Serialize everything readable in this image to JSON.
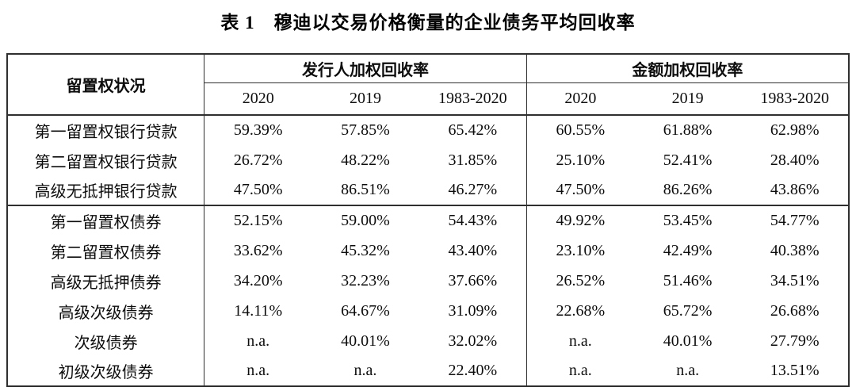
{
  "page": {
    "title": "表 1　穆迪以交易价格衡量的企业债务平均回收率"
  },
  "colors": {
    "background": "#ffffff",
    "text": "#0d0d0d",
    "border": "#2f2f2f"
  },
  "table": {
    "lien_header": "留置权状况",
    "groups": [
      {
        "label": "发行人加权回收率",
        "years": [
          "2020",
          "2019",
          "1983-2020"
        ]
      },
      {
        "label": "金额加权回收率",
        "years": [
          "2020",
          "2019",
          "1983-2020"
        ]
      }
    ],
    "rows": [
      {
        "label": "第一留置权银行贷款",
        "values": [
          "59.39%",
          "57.85%",
          "65.42%",
          "60.55%",
          "61.88%",
          "62.98%"
        ]
      },
      {
        "label": "第二留置权银行贷款",
        "values": [
          "26.72%",
          "48.22%",
          "31.85%",
          "25.10%",
          "52.41%",
          "28.40%"
        ]
      },
      {
        "label": "高级无抵押银行贷款",
        "values": [
          "47.50%",
          "86.51%",
          "46.27%",
          "47.50%",
          "86.26%",
          "43.86%"
        ]
      },
      {
        "label": "第一留置权债券",
        "values": [
          "52.15%",
          "59.00%",
          "54.43%",
          "49.92%",
          "53.45%",
          "54.77%"
        ]
      },
      {
        "label": "第二留置权债券",
        "values": [
          "33.62%",
          "45.32%",
          "43.40%",
          "23.10%",
          "42.49%",
          "40.38%"
        ]
      },
      {
        "label": "高级无抵押债券",
        "values": [
          "34.20%",
          "32.23%",
          "37.66%",
          "26.52%",
          "51.46%",
          "34.51%"
        ]
      },
      {
        "label": "高级次级债券",
        "values": [
          "14.11%",
          "64.67%",
          "31.09%",
          "22.68%",
          "65.72%",
          "26.68%"
        ]
      },
      {
        "label": "次级债券",
        "values": [
          "n.a.",
          "40.01%",
          "32.02%",
          "n.a.",
          "40.01%",
          "27.79%"
        ]
      },
      {
        "label": "初级次级债券",
        "values": [
          "n.a.",
          "n.a.",
          "22.40%",
          "n.a.",
          "n.a.",
          "13.51%"
        ]
      }
    ]
  }
}
